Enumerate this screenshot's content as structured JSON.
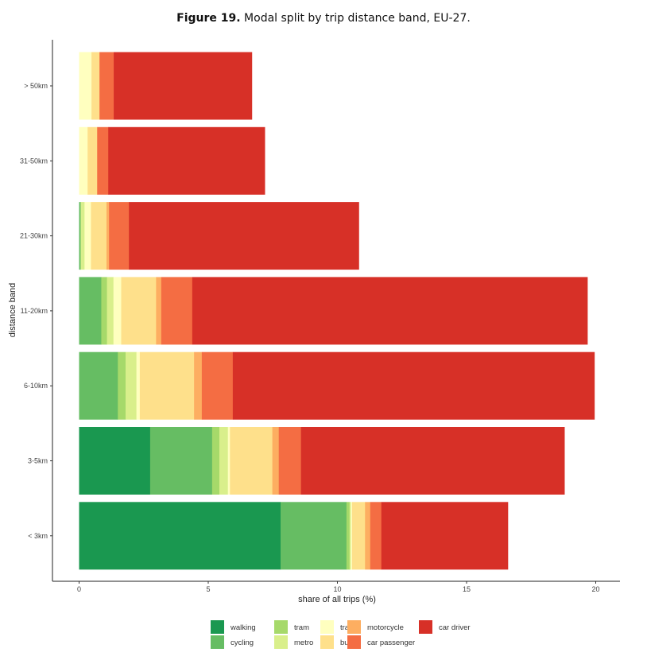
{
  "chart_data": {
    "type": "bar",
    "orientation": "horizontal",
    "stacked": true,
    "title_bold": "Figure 19.",
    "title_rest": " Modal split by trip distance band, EU-27.",
    "xlabel": "share of all trips (%)",
    "ylabel": "distance band",
    "xlim": [
      0,
      20.7
    ],
    "xticks": [
      0,
      5,
      10,
      15,
      20
    ],
    "grid": false,
    "legend_position": "bottom",
    "categories": [
      "> 50km",
      "31-50km",
      "21-30km",
      "11-20km",
      "6-10km",
      "3-5km",
      "< 3km"
    ],
    "series": [
      {
        "name": "walking",
        "color": "#1a9850",
        "values": [
          0,
          0,
          0,
          0,
          0,
          2.75,
          7.8
        ]
      },
      {
        "name": "cycling",
        "color": "#66bd63",
        "values": [
          0,
          0,
          0.06,
          0.86,
          1.5,
          2.4,
          2.55
        ]
      },
      {
        "name": "tram",
        "color": "#a6d96a",
        "values": [
          0,
          0,
          0,
          0.22,
          0.3,
          0.28,
          0.12
        ]
      },
      {
        "name": "metro",
        "color": "#d9ef8b",
        "values": [
          0,
          0,
          0.15,
          0.25,
          0.42,
          0.33,
          0.05
        ]
      },
      {
        "name": "train",
        "color": "#ffffbf",
        "values": [
          0.48,
          0.33,
          0.25,
          0.3,
          0.13,
          0.08,
          0.05
        ]
      },
      {
        "name": "bus",
        "color": "#fee08b",
        "values": [
          0.31,
          0.37,
          0.6,
          1.35,
          2.1,
          1.64,
          0.5
        ]
      },
      {
        "name": "motorcycle",
        "color": "#fdae61",
        "values": [
          0,
          0,
          0.1,
          0.2,
          0.3,
          0.25,
          0.2
        ]
      },
      {
        "name": "car passenger",
        "color": "#f46d43",
        "values": [
          0.55,
          0.43,
          0.77,
          1.2,
          1.2,
          0.86,
          0.43
        ]
      },
      {
        "name": "car driver",
        "color": "#d73027",
        "values": [
          5.35,
          6.06,
          8.9,
          15.3,
          14.0,
          10.2,
          4.9
        ]
      }
    ]
  }
}
